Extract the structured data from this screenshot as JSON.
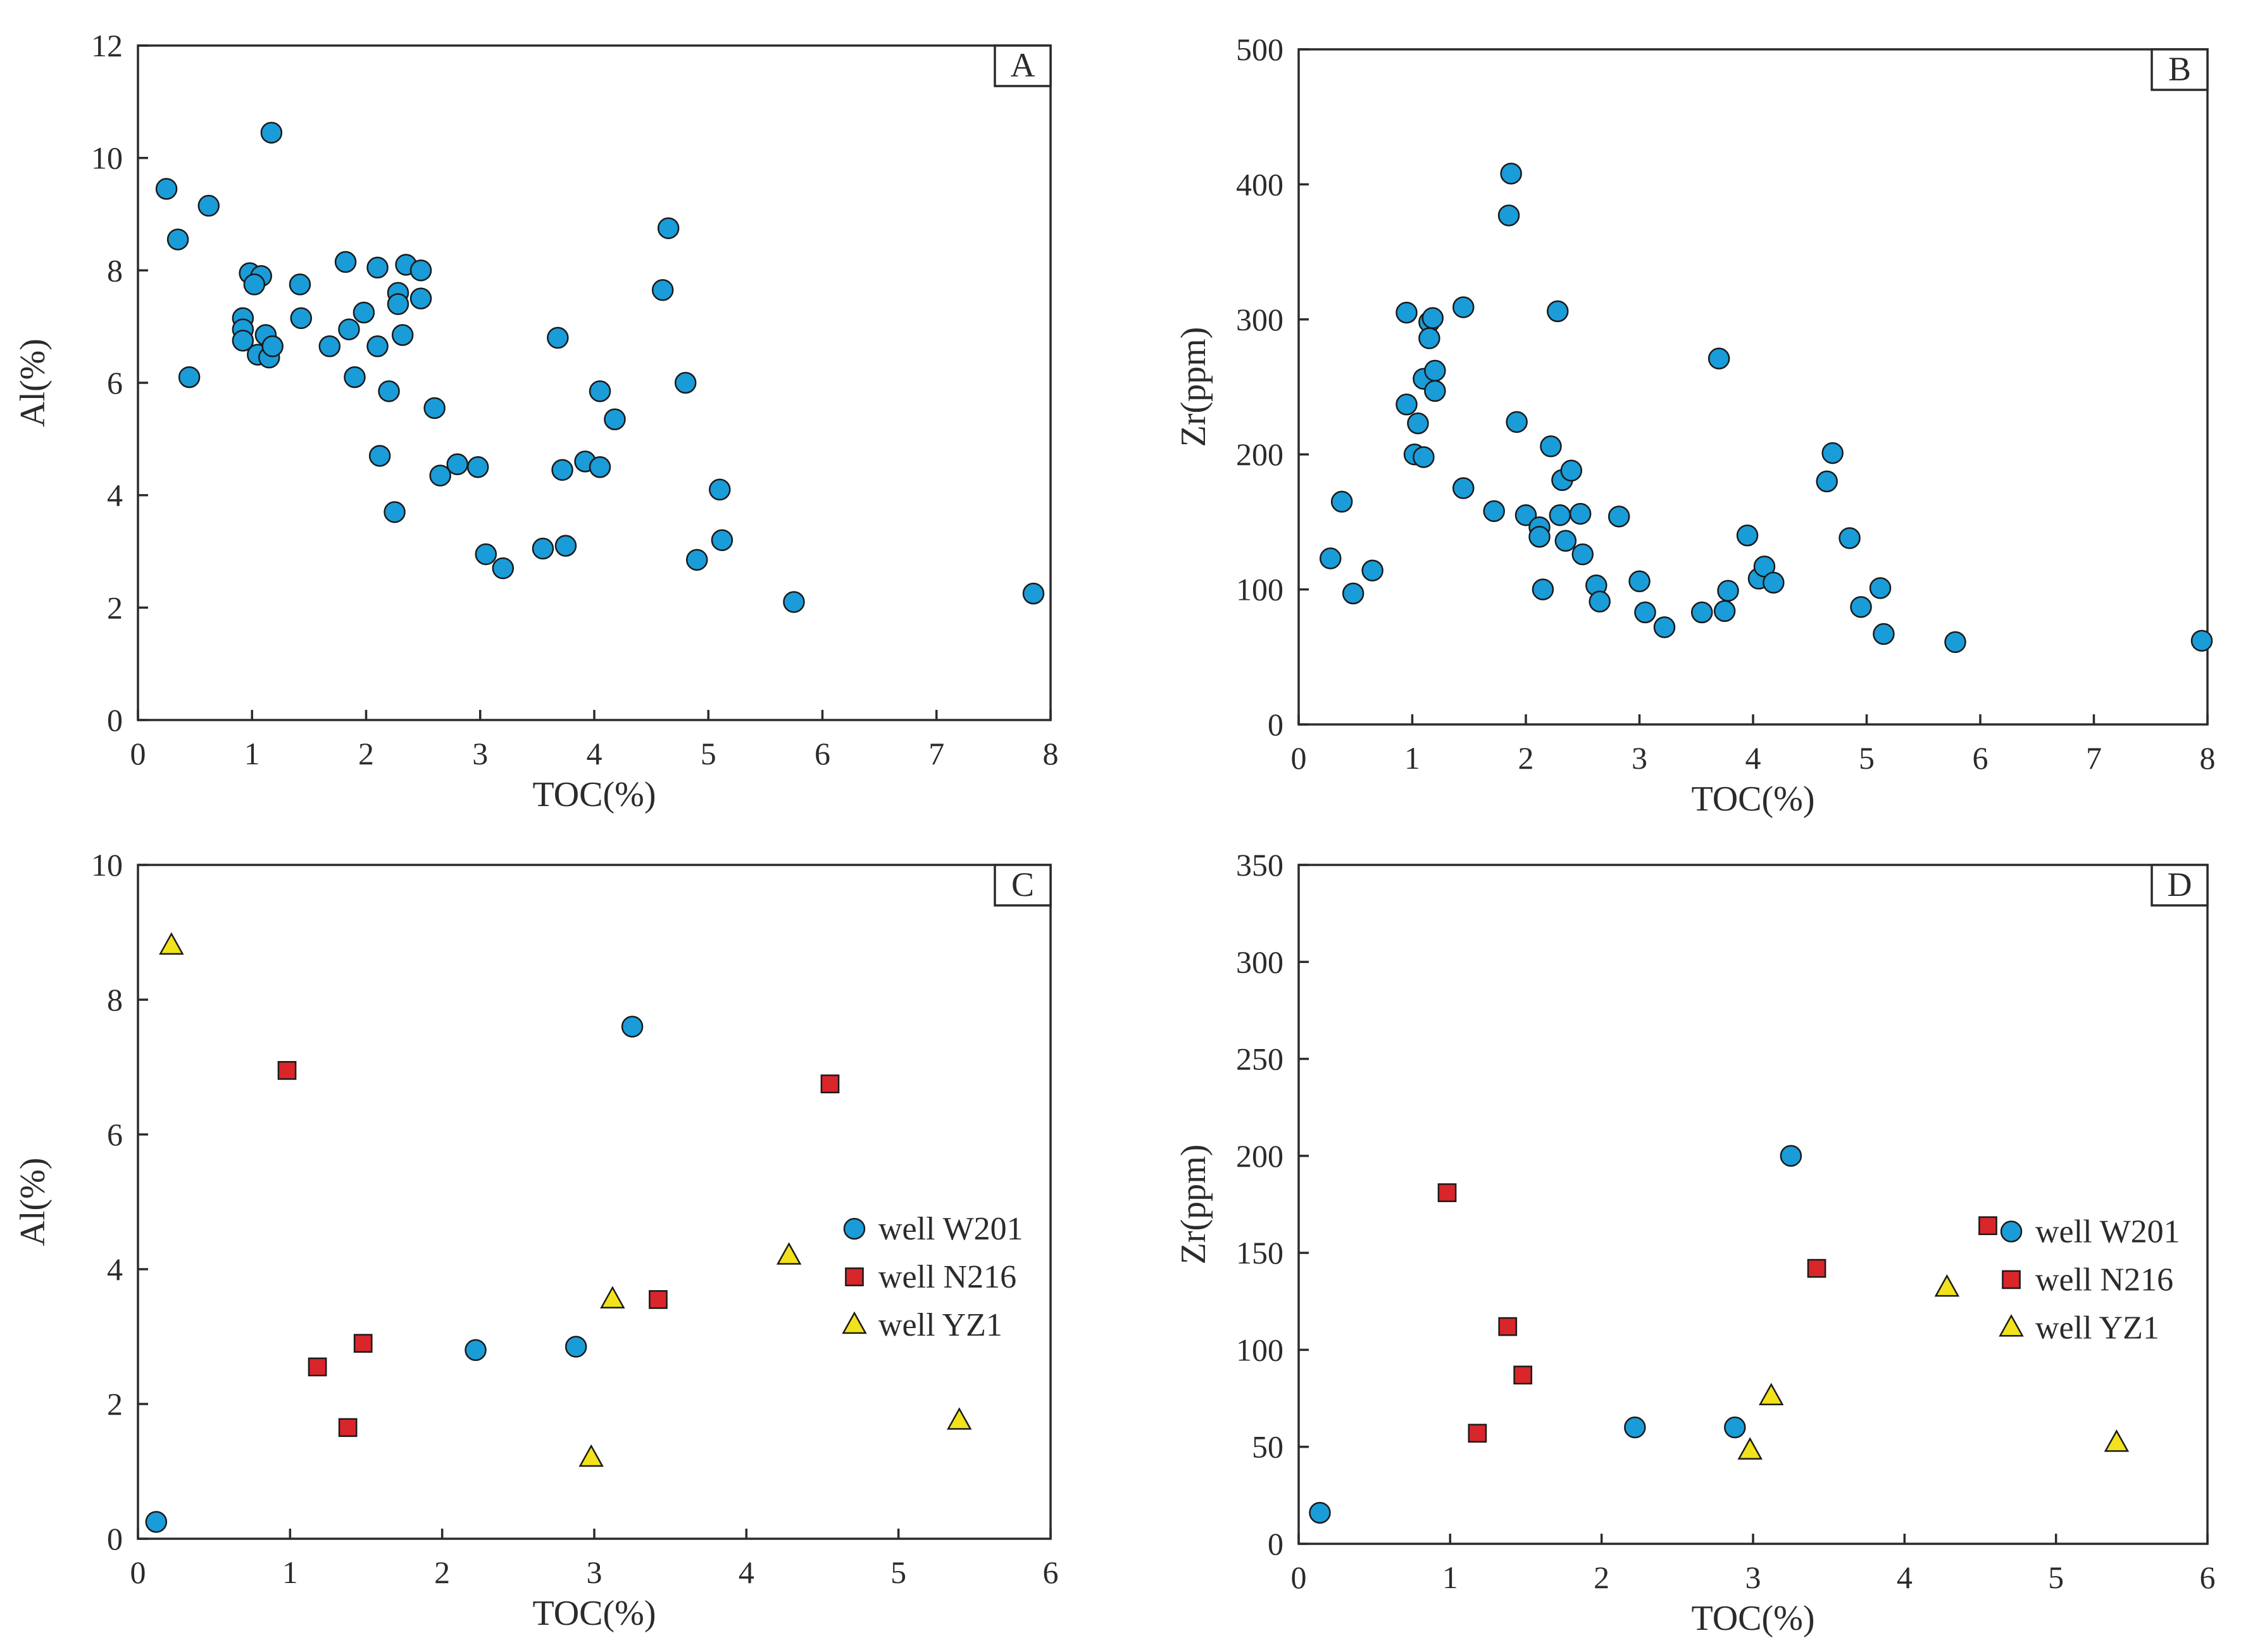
{
  "series_styles": {
    "well W201": {
      "shape": "circle",
      "color": "#1a9cd8"
    },
    "well N216": {
      "shape": "square",
      "color": "#d9262b"
    },
    "well YZ1": {
      "shape": "triangle",
      "color": "#f2e21b"
    }
  },
  "chart_data": [
    {
      "id": "A",
      "panel_label": "A",
      "type": "scatter",
      "xlabel": "TOC(%)",
      "ylabel": "Al(%)",
      "xlim": [
        0,
        8
      ],
      "ylim": [
        0,
        12
      ],
      "xticks": [
        0,
        1,
        2,
        3,
        4,
        5,
        6,
        7,
        8
      ],
      "yticks": [
        0,
        2,
        4,
        6,
        8,
        10,
        12
      ],
      "grid": false,
      "legend": null,
      "series": [
        {
          "name": "",
          "style": "well W201",
          "points": [
            [
              0.25,
              9.45
            ],
            [
              0.35,
              8.55
            ],
            [
              0.62,
              9.15
            ],
            [
              0.45,
              6.1
            ],
            [
              1.17,
              10.45
            ],
            [
              0.98,
              7.95
            ],
            [
              1.08,
              7.9
            ],
            [
              1.02,
              7.75
            ],
            [
              0.92,
              7.15
            ],
            [
              0.92,
              6.95
            ],
            [
              0.92,
              6.75
            ],
            [
              1.12,
              6.85
            ],
            [
              1.05,
              6.5
            ],
            [
              1.15,
              6.45
            ],
            [
              1.18,
              6.65
            ],
            [
              1.42,
              7.75
            ],
            [
              1.43,
              7.15
            ],
            [
              1.68,
              6.65
            ],
            [
              1.82,
              8.15
            ],
            [
              1.85,
              6.95
            ],
            [
              1.9,
              6.1
            ],
            [
              1.98,
              7.25
            ],
            [
              2.1,
              8.05
            ],
            [
              2.1,
              6.65
            ],
            [
              2.12,
              4.7
            ],
            [
              2.2,
              5.85
            ],
            [
              2.25,
              3.7
            ],
            [
              2.28,
              7.6
            ],
            [
              2.28,
              7.4
            ],
            [
              2.35,
              8.1
            ],
            [
              2.32,
              6.85
            ],
            [
              2.48,
              8.0
            ],
            [
              2.48,
              7.5
            ],
            [
              2.6,
              5.55
            ],
            [
              2.65,
              4.35
            ],
            [
              2.8,
              4.55
            ],
            [
              2.98,
              4.5
            ],
            [
              3.05,
              2.95
            ],
            [
              3.2,
              2.7
            ],
            [
              3.55,
              3.05
            ],
            [
              3.68,
              6.8
            ],
            [
              3.72,
              4.45
            ],
            [
              3.75,
              3.1
            ],
            [
              3.92,
              4.6
            ],
            [
              4.05,
              5.85
            ],
            [
              4.05,
              4.5
            ],
            [
              4.18,
              5.35
            ],
            [
              4.6,
              7.65
            ],
            [
              4.65,
              8.75
            ],
            [
              4.8,
              6.0
            ],
            [
              4.9,
              2.85
            ],
            [
              5.1,
              4.1
            ],
            [
              5.12,
              3.2
            ],
            [
              5.75,
              2.1
            ],
            [
              7.85,
              2.25
            ]
          ]
        }
      ]
    },
    {
      "id": "B",
      "panel_label": "B",
      "type": "scatter",
      "xlabel": "TOC(%)",
      "ylabel": "Zr(ppm)",
      "xlim": [
        0,
        8
      ],
      "ylim": [
        0,
        500
      ],
      "xticks": [
        0,
        1,
        2,
        3,
        4,
        5,
        6,
        7,
        8
      ],
      "yticks": [
        0,
        100,
        200,
        300,
        400,
        500
      ],
      "grid": false,
      "legend": null,
      "series": [
        {
          "name": "",
          "style": "well W201",
          "points": [
            [
              0.28,
              123
            ],
            [
              0.38,
              165
            ],
            [
              0.48,
              97
            ],
            [
              0.65,
              114
            ],
            [
              0.95,
              305
            ],
            [
              0.95,
              237
            ],
            [
              1.02,
              200
            ],
            [
              1.05,
              223
            ],
            [
              1.1,
              256
            ],
            [
              1.1,
              198
            ],
            [
              1.15,
              298
            ],
            [
              1.15,
              286
            ],
            [
              1.18,
              301
            ],
            [
              1.2,
              262
            ],
            [
              1.2,
              247
            ],
            [
              1.45,
              309
            ],
            [
              1.45,
              175
            ],
            [
              1.72,
              158
            ],
            [
              1.85,
              377
            ],
            [
              1.87,
              408
            ],
            [
              1.92,
              224
            ],
            [
              2.0,
              155
            ],
            [
              2.12,
              146
            ],
            [
              2.12,
              139
            ],
            [
              2.15,
              100
            ],
            [
              2.22,
              206
            ],
            [
              2.28,
              306
            ],
            [
              2.3,
              155
            ],
            [
              2.32,
              181
            ],
            [
              2.35,
              136
            ],
            [
              2.4,
              188
            ],
            [
              2.48,
              156
            ],
            [
              2.5,
              126
            ],
            [
              2.62,
              103
            ],
            [
              2.65,
              91
            ],
            [
              2.82,
              154
            ],
            [
              3.0,
              106
            ],
            [
              3.05,
              83
            ],
            [
              3.22,
              72
            ],
            [
              3.55,
              83
            ],
            [
              3.7,
              271
            ],
            [
              3.75,
              84
            ],
            [
              3.78,
              99
            ],
            [
              3.95,
              140
            ],
            [
              4.05,
              108
            ],
            [
              4.1,
              117
            ],
            [
              4.18,
              105
            ],
            [
              4.65,
              180
            ],
            [
              4.7,
              201
            ],
            [
              4.85,
              138
            ],
            [
              4.95,
              87
            ],
            [
              5.12,
              101
            ],
            [
              5.15,
              67
            ],
            [
              5.78,
              61
            ],
            [
              7.95,
              62
            ]
          ]
        }
      ]
    },
    {
      "id": "C",
      "panel_label": "C",
      "type": "scatter",
      "xlabel": "TOC(%)",
      "ylabel": "Al(%)",
      "xlim": [
        0,
        6
      ],
      "ylim": [
        0,
        10
      ],
      "xticks": [
        0,
        1,
        2,
        3,
        4,
        5,
        6
      ],
      "yticks": [
        0,
        2,
        4,
        6,
        8,
        10
      ],
      "grid": false,
      "legend": "center-right",
      "series": [
        {
          "name": "well W201",
          "style": "well W201",
          "points": [
            [
              0.12,
              0.25
            ],
            [
              2.22,
              2.8
            ],
            [
              2.88,
              2.85
            ],
            [
              3.25,
              7.6
            ]
          ]
        },
        {
          "name": "well N216",
          "style": "well N216",
          "points": [
            [
              0.98,
              6.95
            ],
            [
              1.18,
              2.55
            ],
            [
              1.38,
              1.65
            ],
            [
              1.48,
              2.9
            ],
            [
              3.42,
              3.55
            ],
            [
              4.55,
              6.75
            ]
          ]
        },
        {
          "name": "well YZ1",
          "style": "well YZ1",
          "points": [
            [
              0.22,
              8.8
            ],
            [
              2.98,
              1.2
            ],
            [
              3.12,
              3.55
            ],
            [
              4.28,
              4.2
            ],
            [
              5.4,
              1.75
            ]
          ]
        }
      ]
    },
    {
      "id": "D",
      "panel_label": "D",
      "type": "scatter",
      "xlabel": "TOC(%)",
      "ylabel": "Zr(ppm)",
      "xlim": [
        0,
        6
      ],
      "ylim": [
        0,
        350
      ],
      "xticks": [
        0,
        1,
        2,
        3,
        4,
        5,
        6
      ],
      "yticks": [
        0,
        50,
        100,
        150,
        200,
        250,
        300,
        350
      ],
      "grid": false,
      "legend": "center-right",
      "series": [
        {
          "name": "well W201",
          "style": "well W201",
          "points": [
            [
              0.14,
              16
            ],
            [
              2.22,
              60
            ],
            [
              2.88,
              60
            ],
            [
              3.25,
              200
            ]
          ]
        },
        {
          "name": "well N216",
          "style": "well N216",
          "points": [
            [
              0.98,
              181
            ],
            [
              1.18,
              57
            ],
            [
              1.38,
              112
            ],
            [
              1.48,
              87
            ],
            [
              3.42,
              142
            ],
            [
              4.55,
              164
            ]
          ]
        },
        {
          "name": "well YZ1",
          "style": "well YZ1",
          "points": [
            [
              2.98,
              48
            ],
            [
              3.12,
              76
            ],
            [
              4.28,
              132
            ],
            [
              5.4,
              52
            ]
          ]
        }
      ]
    }
  ]
}
